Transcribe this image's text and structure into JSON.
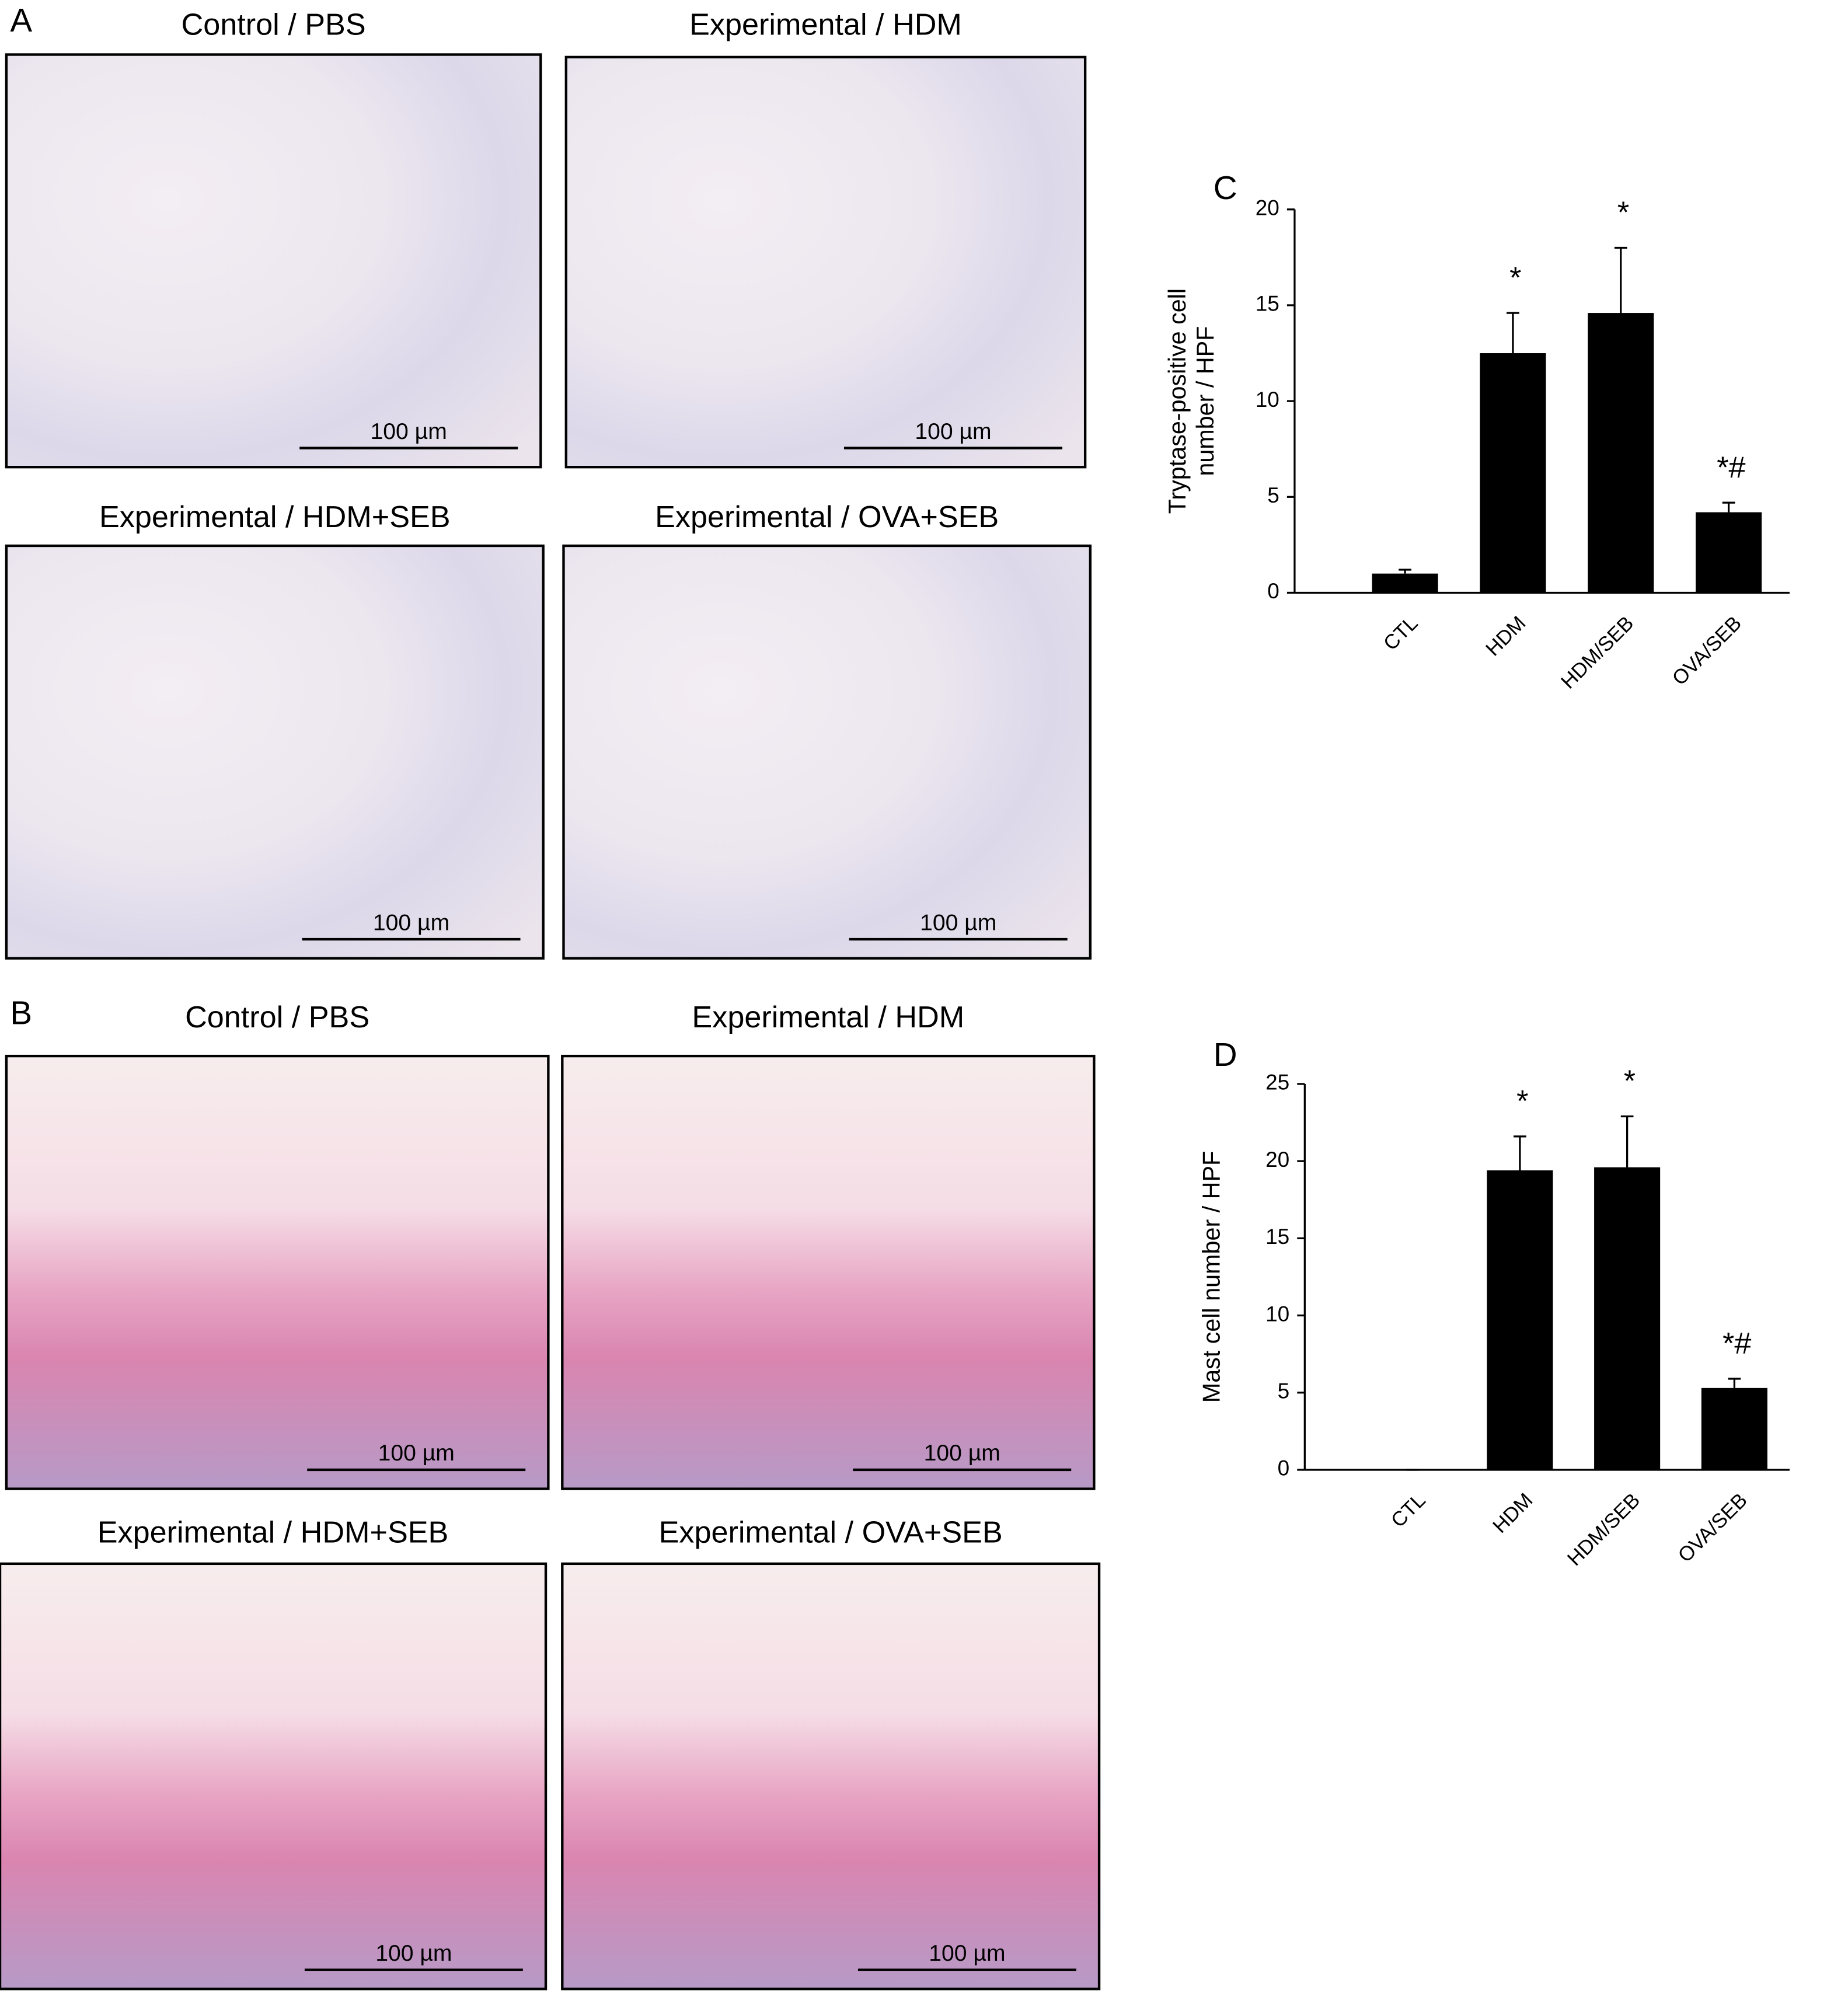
{
  "panels": [
    {
      "letter": "A",
      "images": [
        {
          "title": "Control / PBS",
          "scale": "100 µm"
        },
        {
          "title": "Experimental / HDM",
          "scale": "100 µm"
        },
        {
          "title": "Experimental / HDM+SEB",
          "scale": "100 µm"
        },
        {
          "title": "Experimental / OVA+SEB",
          "scale": "100 µm"
        }
      ]
    },
    {
      "letter": "B",
      "images": [
        {
          "title": "Control / PBS",
          "scale": "100 µm"
        },
        {
          "title": "Experimental / HDM",
          "scale": "100 µm"
        },
        {
          "title": "Experimental / HDM+SEB",
          "scale": "100 µm"
        },
        {
          "title": "Experimental / OVA+SEB",
          "scale": "100 µm"
        }
      ]
    }
  ],
  "chart_data": [
    {
      "type": "bar",
      "letter": "C",
      "ylabel": [
        "Tryptase-positive cell",
        "number / HPF"
      ],
      "categories": [
        "CTL",
        "HDM",
        "HDM/SEB",
        "OVA/SEB"
      ],
      "values": [
        1.0,
        12.5,
        14.6,
        4.2
      ],
      "errors": [
        0.2,
        2.1,
        3.4,
        0.5
      ],
      "color": "#000000",
      "ylim": [
        0,
        20
      ],
      "yticks": [
        0,
        5,
        10,
        15,
        20
      ],
      "annotations": [
        {
          "x": "HDM",
          "text": "*"
        },
        {
          "x": "HDM/SEB",
          "text": "*"
        },
        {
          "x": "OVA/SEB",
          "text": "*#"
        }
      ]
    },
    {
      "type": "bar",
      "letter": "D",
      "ylabel": [
        "Mast cell number / HPF"
      ],
      "categories": [
        "CTL",
        "HDM",
        "HDM/SEB",
        "OVA/SEB"
      ],
      "values": [
        0,
        19.4,
        19.6,
        5.3
      ],
      "errors": [
        0,
        2.2,
        3.3,
        0.6
      ],
      "color": "#000000",
      "ylim": [
        0,
        25
      ],
      "yticks": [
        0,
        5,
        10,
        15,
        20,
        25
      ],
      "annotations": [
        {
          "x": "HDM",
          "text": "*"
        },
        {
          "x": "HDM/SEB",
          "text": "*"
        },
        {
          "x": "OVA/SEB",
          "text": "*#"
        }
      ]
    }
  ]
}
